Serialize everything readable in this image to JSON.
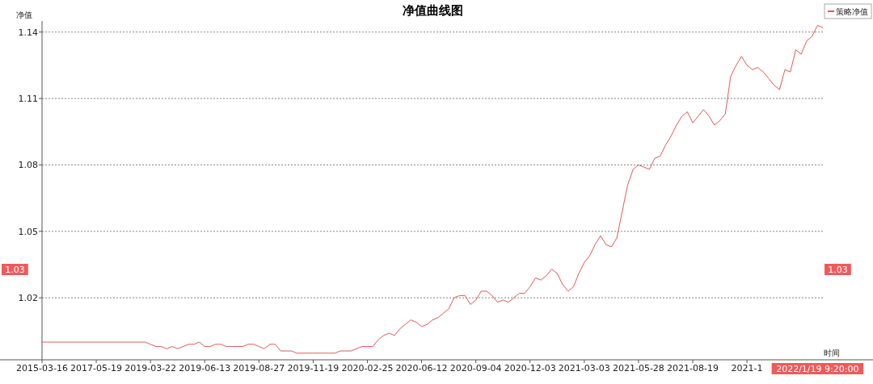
{
  "chart_data": {
    "type": "line",
    "title": "净值曲线图",
    "xlabel": "时间",
    "ylabel": "净值",
    "categories": [
      "2015-03-16",
      null,
      null,
      null,
      null,
      null,
      null,
      null,
      null,
      null,
      "2017-05-19",
      null,
      null,
      null,
      null,
      null,
      null,
      null,
      null,
      null,
      "2019-03-22",
      null,
      null,
      null,
      null,
      null,
      null,
      null,
      null,
      null,
      "2019-06-13",
      null,
      null,
      null,
      null,
      null,
      null,
      null,
      null,
      null,
      "2019-08-27",
      null,
      null,
      null,
      null,
      null,
      null,
      null,
      null,
      null,
      "2019-11-19",
      null,
      null,
      null,
      null,
      null,
      null,
      null,
      null,
      null,
      "2020-02-25",
      null,
      null,
      null,
      null,
      null,
      null,
      null,
      null,
      null,
      "2020-06-12",
      null,
      null,
      null,
      null,
      null,
      null,
      null,
      null,
      null,
      "2020-09-04",
      null,
      null,
      null,
      null,
      null,
      null,
      null,
      null,
      null,
      "2020-12-03",
      null,
      null,
      null,
      null,
      null,
      null,
      null,
      null,
      null,
      "2021-03-03",
      null,
      null,
      null,
      null,
      null,
      null,
      null,
      null,
      null,
      "2021-05-28",
      null,
      null,
      null,
      null,
      null,
      null,
      null,
      null,
      null,
      "2021-08-19",
      null,
      null,
      null,
      null,
      null,
      null,
      null,
      null,
      null,
      "2021-1",
      null,
      null,
      null,
      null,
      null,
      null,
      null,
      null,
      null,
      null,
      null,
      null,
      null,
      null
    ],
    "series": [
      {
        "name": "策略净值",
        "color": "#e05a5a",
        "values": [
          1.0,
          1.0,
          1.0,
          1.0,
          1.0,
          1.0,
          1.0,
          1.0,
          1.0,
          1.0,
          1.0,
          1.0,
          1.0,
          1.0,
          1.0,
          1.0,
          1.0,
          1.0,
          1.0,
          1.0,
          0.999,
          0.998,
          0.998,
          0.997,
          0.998,
          0.997,
          0.998,
          0.999,
          0.999,
          1.0,
          0.998,
          0.998,
          0.999,
          0.999,
          0.998,
          0.998,
          0.998,
          0.998,
          0.999,
          0.999,
          0.998,
          0.997,
          0.999,
          0.999,
          0.996,
          0.996,
          0.996,
          0.995,
          0.995,
          0.995,
          0.995,
          0.995,
          0.995,
          0.995,
          0.995,
          0.996,
          0.996,
          0.996,
          0.997,
          0.998,
          0.998,
          0.998,
          1.001,
          1.003,
          1.004,
          1.003,
          1.006,
          1.008,
          1.01,
          1.009,
          1.007,
          1.008,
          1.01,
          1.011,
          1.013,
          1.015,
          1.02,
          1.021,
          1.021,
          1.017,
          1.019,
          1.023,
          1.023,
          1.021,
          1.018,
          1.019,
          1.018,
          1.02,
          1.022,
          1.022,
          1.025,
          1.029,
          1.028,
          1.03,
          1.033,
          1.031,
          1.026,
          1.023,
          1.025,
          1.031,
          1.036,
          1.039,
          1.044,
          1.048,
          1.044,
          1.043,
          1.047,
          1.059,
          1.071,
          1.078,
          1.08,
          1.079,
          1.078,
          1.083,
          1.084,
          1.089,
          1.093,
          1.098,
          1.102,
          1.104,
          1.099,
          1.102,
          1.105,
          1.102,
          1.098,
          1.1,
          1.103,
          1.12,
          1.125,
          1.129,
          1.125,
          1.123,
          1.124,
          1.122,
          1.119,
          1.116,
          1.114,
          1.123,
          1.122,
          1.132,
          1.13,
          1.136,
          1.138,
          1.143,
          1.142
        ]
      }
    ],
    "ylim": [
      0.992,
      1.145
    ],
    "yticks": [
      1.02,
      1.05,
      1.08,
      1.11,
      1.14
    ],
    "grid": "y",
    "legend": "top right",
    "annotations": [
      "1.03",
      "1.03",
      "2022/1/19 9:20:00"
    ]
  }
}
